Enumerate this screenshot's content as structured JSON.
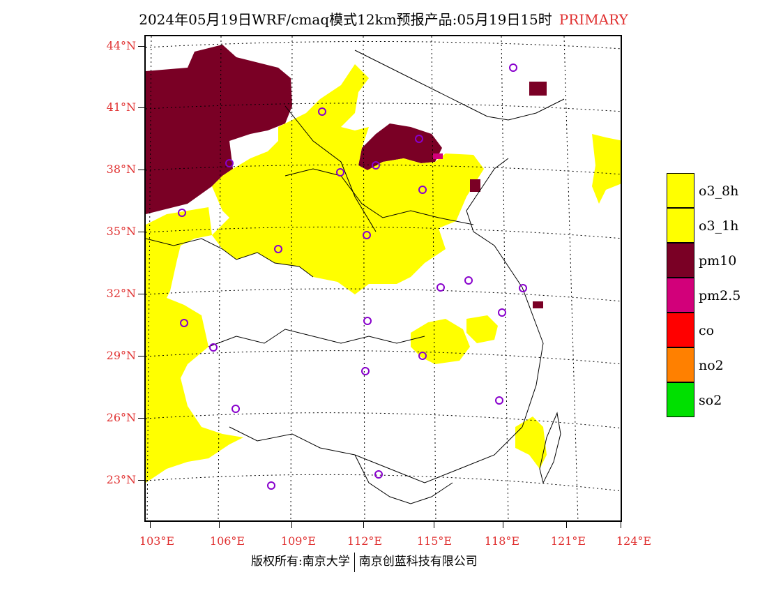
{
  "title": {
    "main": "2024年05月19日WRF/cmaq模式12km预报产品:05月19日15时",
    "tag": "PRIMARY"
  },
  "lat_labels": [
    "44°N",
    "41°N",
    "38°N",
    "35°N",
    "32°N",
    "29°N",
    "26°N",
    "23°N"
  ],
  "lon_labels": [
    "103°E",
    "106°E",
    "109°E",
    "112°E",
    "115°E",
    "118°E",
    "121°E",
    "124°E"
  ],
  "legend": [
    {
      "label": "o3_8h",
      "color": "#ffff00"
    },
    {
      "label": "o3_1h",
      "color": "#ffff00"
    },
    {
      "label": "pm10",
      "color": "#7a0025"
    },
    {
      "label": "pm2.5",
      "color": "#d2007a"
    },
    {
      "label": "co",
      "color": "#ff0000"
    },
    {
      "label": "no2",
      "color": "#ff8000"
    },
    {
      "label": "so2",
      "color": "#00e000"
    }
  ],
  "footer": {
    "left": "版权所有:南京大学",
    "right": "南京创蓝科技有限公司"
  },
  "colors": {
    "o3": "#ffff00",
    "pm10": "#7a0025",
    "pm25": "#d2007a",
    "station": "#8800cc",
    "axis_text": "#e03030"
  }
}
